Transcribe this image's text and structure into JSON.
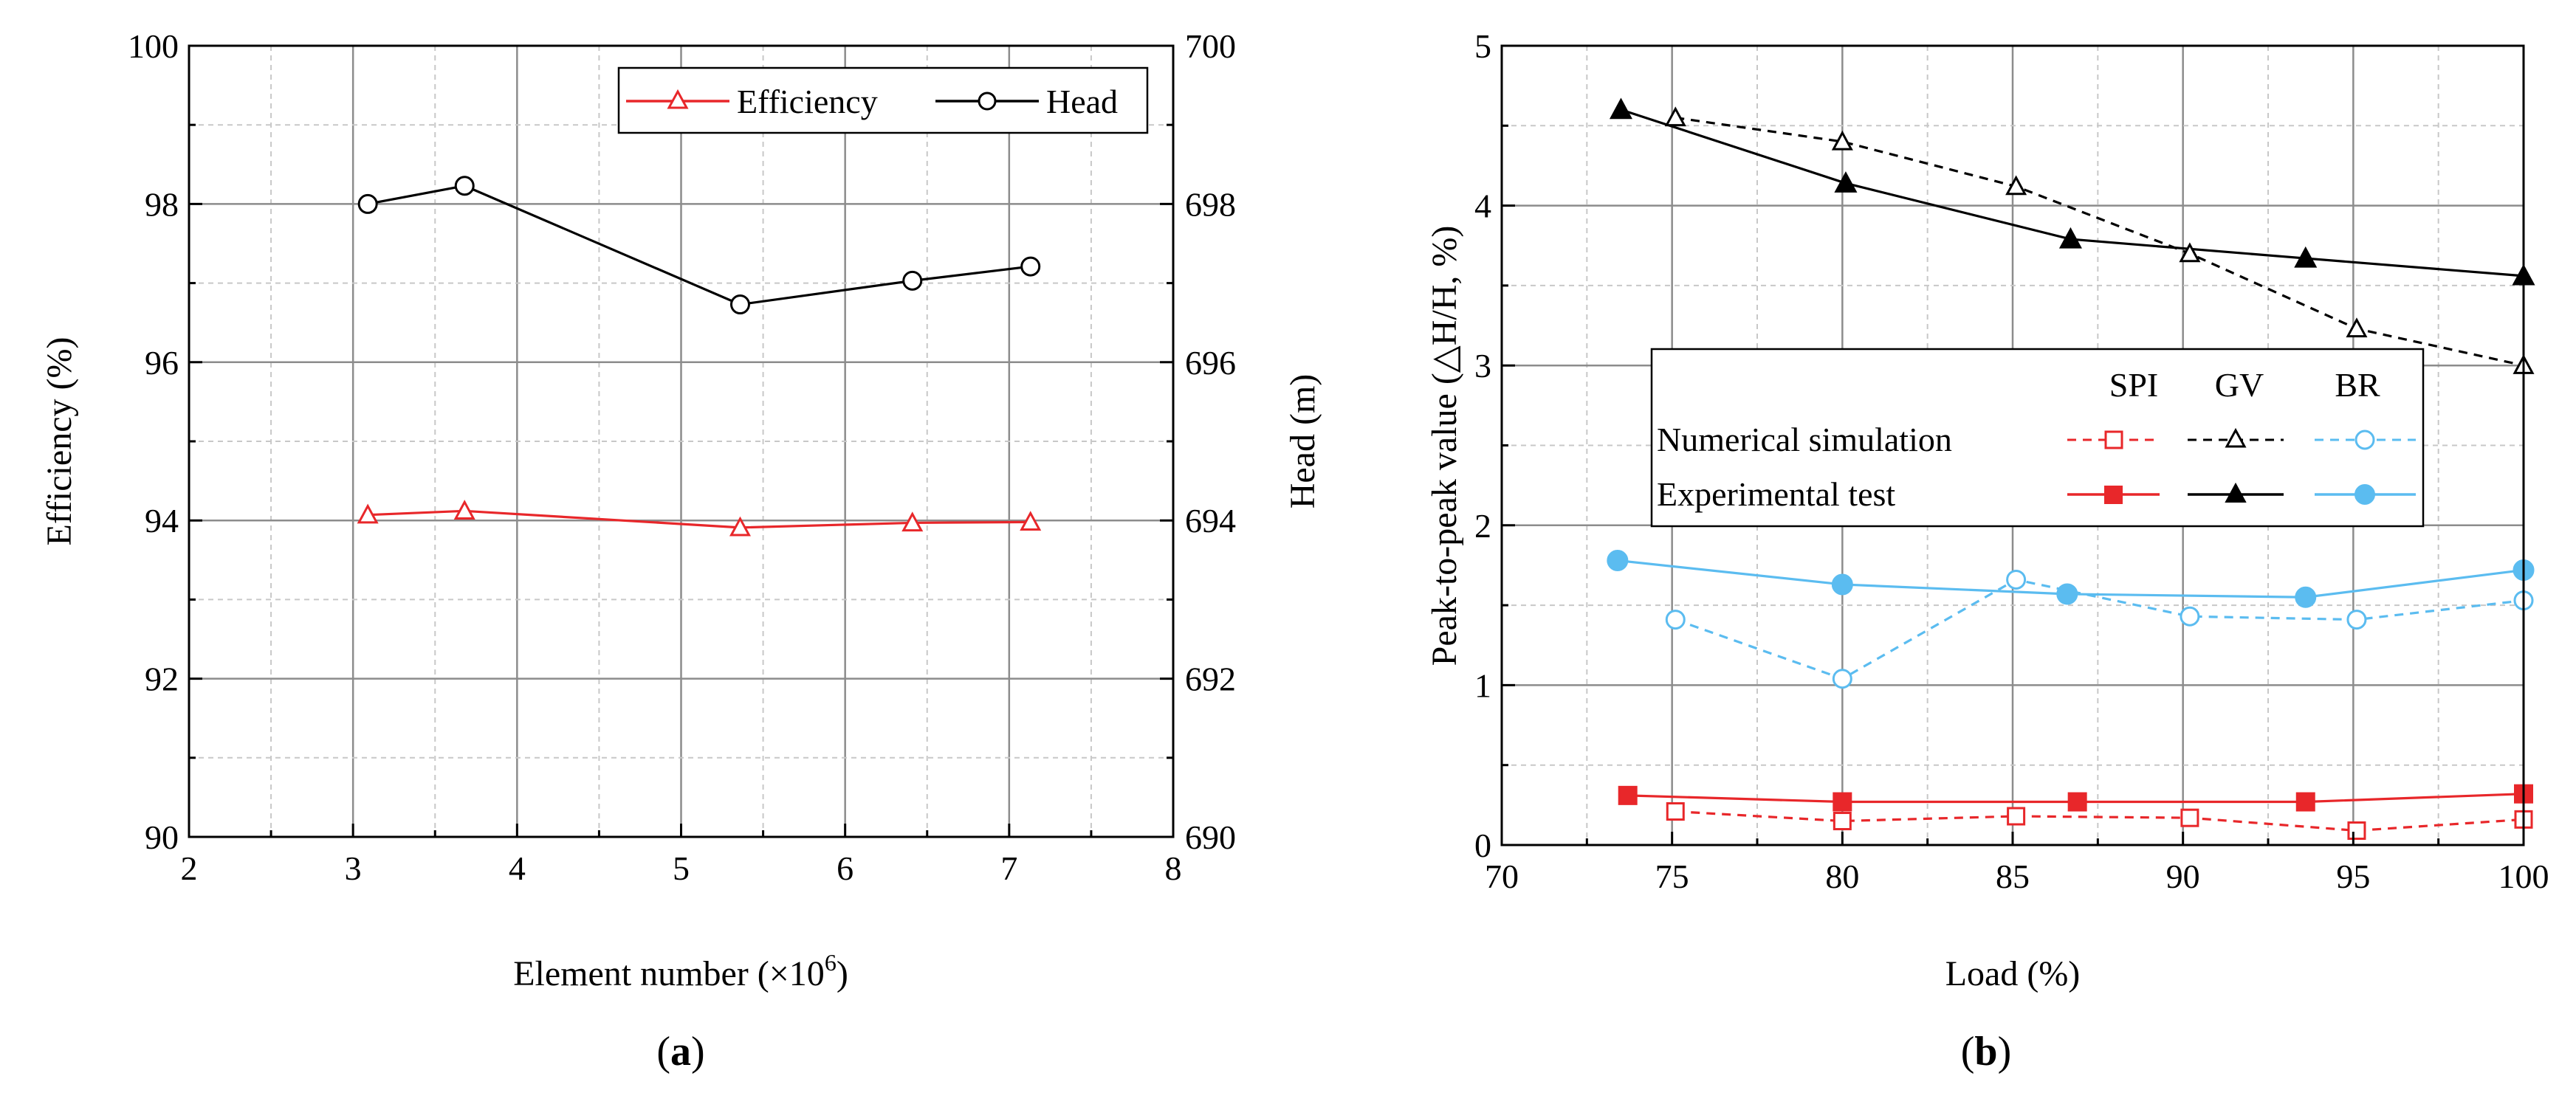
{
  "chart_data": [
    {
      "type": "line",
      "panel_label": "(a)",
      "panel_label_parts": {
        "open": "(",
        "letter": "a",
        "close": ")"
      },
      "xlabel": "Element number (×10",
      "xlabel_sup": "6",
      "xlabel_close": ")",
      "ylabel_left": "Efficiency (%)",
      "ylabel_right": "Head (m)",
      "xlim": [
        2,
        8
      ],
      "ylim_left": [
        90,
        100
      ],
      "ylim_right": [
        690,
        700
      ],
      "x_ticks": [
        "2",
        "3",
        "4",
        "5",
        "6",
        "7",
        "8"
      ],
      "y_ticks_left": [
        "90",
        "92",
        "94",
        "96",
        "98",
        "100"
      ],
      "y_ticks_right": [
        "690",
        "692",
        "694",
        "696",
        "698",
        "700"
      ],
      "grid": true,
      "legend_position": "top-right",
      "series": [
        {
          "name": "Efficiency",
          "axis": "left",
          "color": "#e8272a",
          "marker": "open-triangle",
          "line": "solid",
          "x": [
            3.09,
            3.68,
            5.36,
            6.41,
            7.13
          ],
          "y": [
            94.07,
            94.12,
            93.91,
            93.97,
            93.98
          ]
        },
        {
          "name": "Head",
          "axis": "right",
          "color": "#000000",
          "marker": "open-circle",
          "line": "solid",
          "x": [
            3.09,
            3.68,
            5.36,
            6.41,
            7.13
          ],
          "y": [
            698.0,
            698.23,
            696.73,
            697.03,
            697.21
          ]
        }
      ]
    },
    {
      "type": "line",
      "panel_label": "(b)",
      "panel_label_parts": {
        "open": "(",
        "letter": "b",
        "close": ")"
      },
      "xlabel": "Load (%)",
      "ylabel": "Peak-to-peak value  (△H/H, %)",
      "xlim": [
        70,
        100
      ],
      "ylim": [
        0,
        5
      ],
      "x_ticks": [
        "70",
        "75",
        "80",
        "85",
        "90",
        "95",
        "100"
      ],
      "y_ticks": [
        "0",
        "1",
        "2",
        "3",
        "4",
        "5"
      ],
      "grid": true,
      "legend_position": "center-right",
      "legend": {
        "columns": [
          "SPI",
          "GV",
          "BR"
        ],
        "rows": [
          "Numerical simulation",
          "Experimental test"
        ]
      },
      "series": [
        {
          "name": "SPI",
          "group": "Numerical simulation",
          "color": "#e8272a",
          "marker": "open-square",
          "line": "dashed",
          "x": [
            75.1,
            80.0,
            85.1,
            90.2,
            95.1,
            100.0
          ],
          "y": [
            0.21,
            0.15,
            0.18,
            0.17,
            0.09,
            0.16
          ]
        },
        {
          "name": "GV",
          "group": "Numerical simulation",
          "color": "#000000",
          "marker": "open-triangle",
          "line": "dashed",
          "x": [
            75.1,
            80.0,
            85.1,
            90.2,
            95.1,
            100.0
          ],
          "y": [
            4.55,
            4.4,
            4.12,
            3.7,
            3.23,
            3.0
          ]
        },
        {
          "name": "BR",
          "group": "Numerical simulation",
          "color": "#5bbcf0",
          "marker": "open-circle",
          "line": "dashed",
          "x": [
            75.1,
            80.0,
            85.1,
            90.2,
            95.1,
            100.0
          ],
          "y": [
            1.41,
            1.04,
            1.66,
            1.43,
            1.41,
            1.53
          ]
        },
        {
          "name": "SPI",
          "group": "Experimental test",
          "color": "#e8272a",
          "marker": "filled-square",
          "line": "solid",
          "x": [
            73.7,
            80.0,
            86.9,
            93.6,
            100.0
          ],
          "y": [
            0.31,
            0.27,
            0.27,
            0.27,
            0.32
          ]
        },
        {
          "name": "GV",
          "group": "Experimental test",
          "color": "#000000",
          "marker": "filled-triangle",
          "line": "solid",
          "x": [
            73.5,
            80.1,
            86.7,
            93.6,
            100.0
          ],
          "y": [
            4.6,
            4.14,
            3.79,
            3.67,
            3.56
          ]
        },
        {
          "name": "BR",
          "group": "Experimental test",
          "color": "#5bbcf0",
          "marker": "filled-circle",
          "line": "solid",
          "x": [
            73.4,
            80.0,
            86.6,
            93.6,
            100.0
          ],
          "y": [
            1.78,
            1.63,
            1.57,
            1.55,
            1.72
          ]
        }
      ]
    }
  ]
}
